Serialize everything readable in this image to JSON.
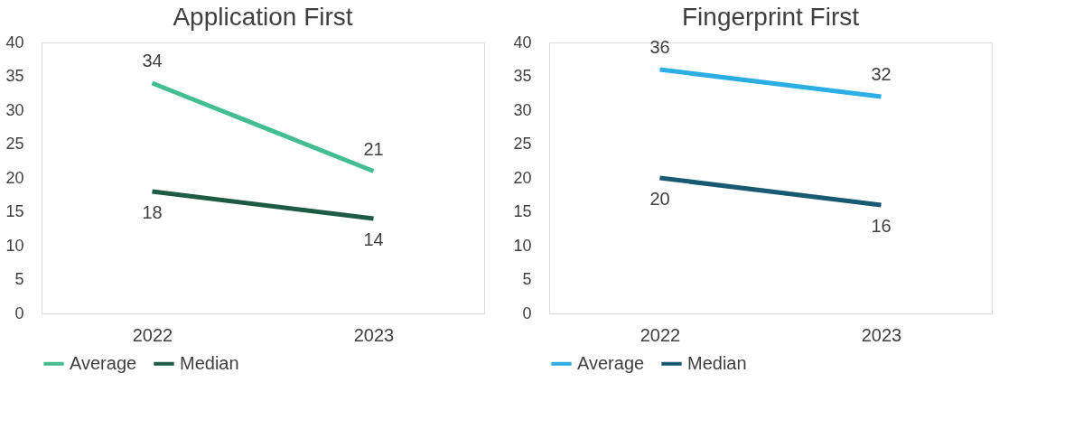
{
  "chart_data": [
    {
      "type": "line",
      "title": "Application First",
      "categories": [
        "2022",
        "2023"
      ],
      "ylim": [
        0,
        40
      ],
      "yticks": [
        0,
        5,
        10,
        15,
        20,
        25,
        30,
        35,
        40
      ],
      "grid": false,
      "legend": "bottom",
      "data_labels": true,
      "marker": "none",
      "line_style": "solid",
      "series": [
        {
          "name": "Average",
          "color": "#44bd91",
          "values": [
            34,
            21
          ]
        },
        {
          "name": "Median",
          "color": "#1d5b44",
          "values": [
            18,
            14
          ]
        }
      ]
    },
    {
      "type": "line",
      "title": "Fingerprint First",
      "categories": [
        "2022",
        "2023"
      ],
      "ylim": [
        0,
        40
      ],
      "yticks": [
        0,
        5,
        10,
        15,
        20,
        25,
        30,
        35,
        40
      ],
      "grid": false,
      "legend": "bottom",
      "data_labels": true,
      "marker": "none",
      "line_style": "solid",
      "series": [
        {
          "name": "Average",
          "color": "#2aaee3",
          "values": [
            36,
            32
          ]
        },
        {
          "name": "Median",
          "color": "#175a72",
          "values": [
            20,
            16
          ]
        }
      ]
    }
  ]
}
